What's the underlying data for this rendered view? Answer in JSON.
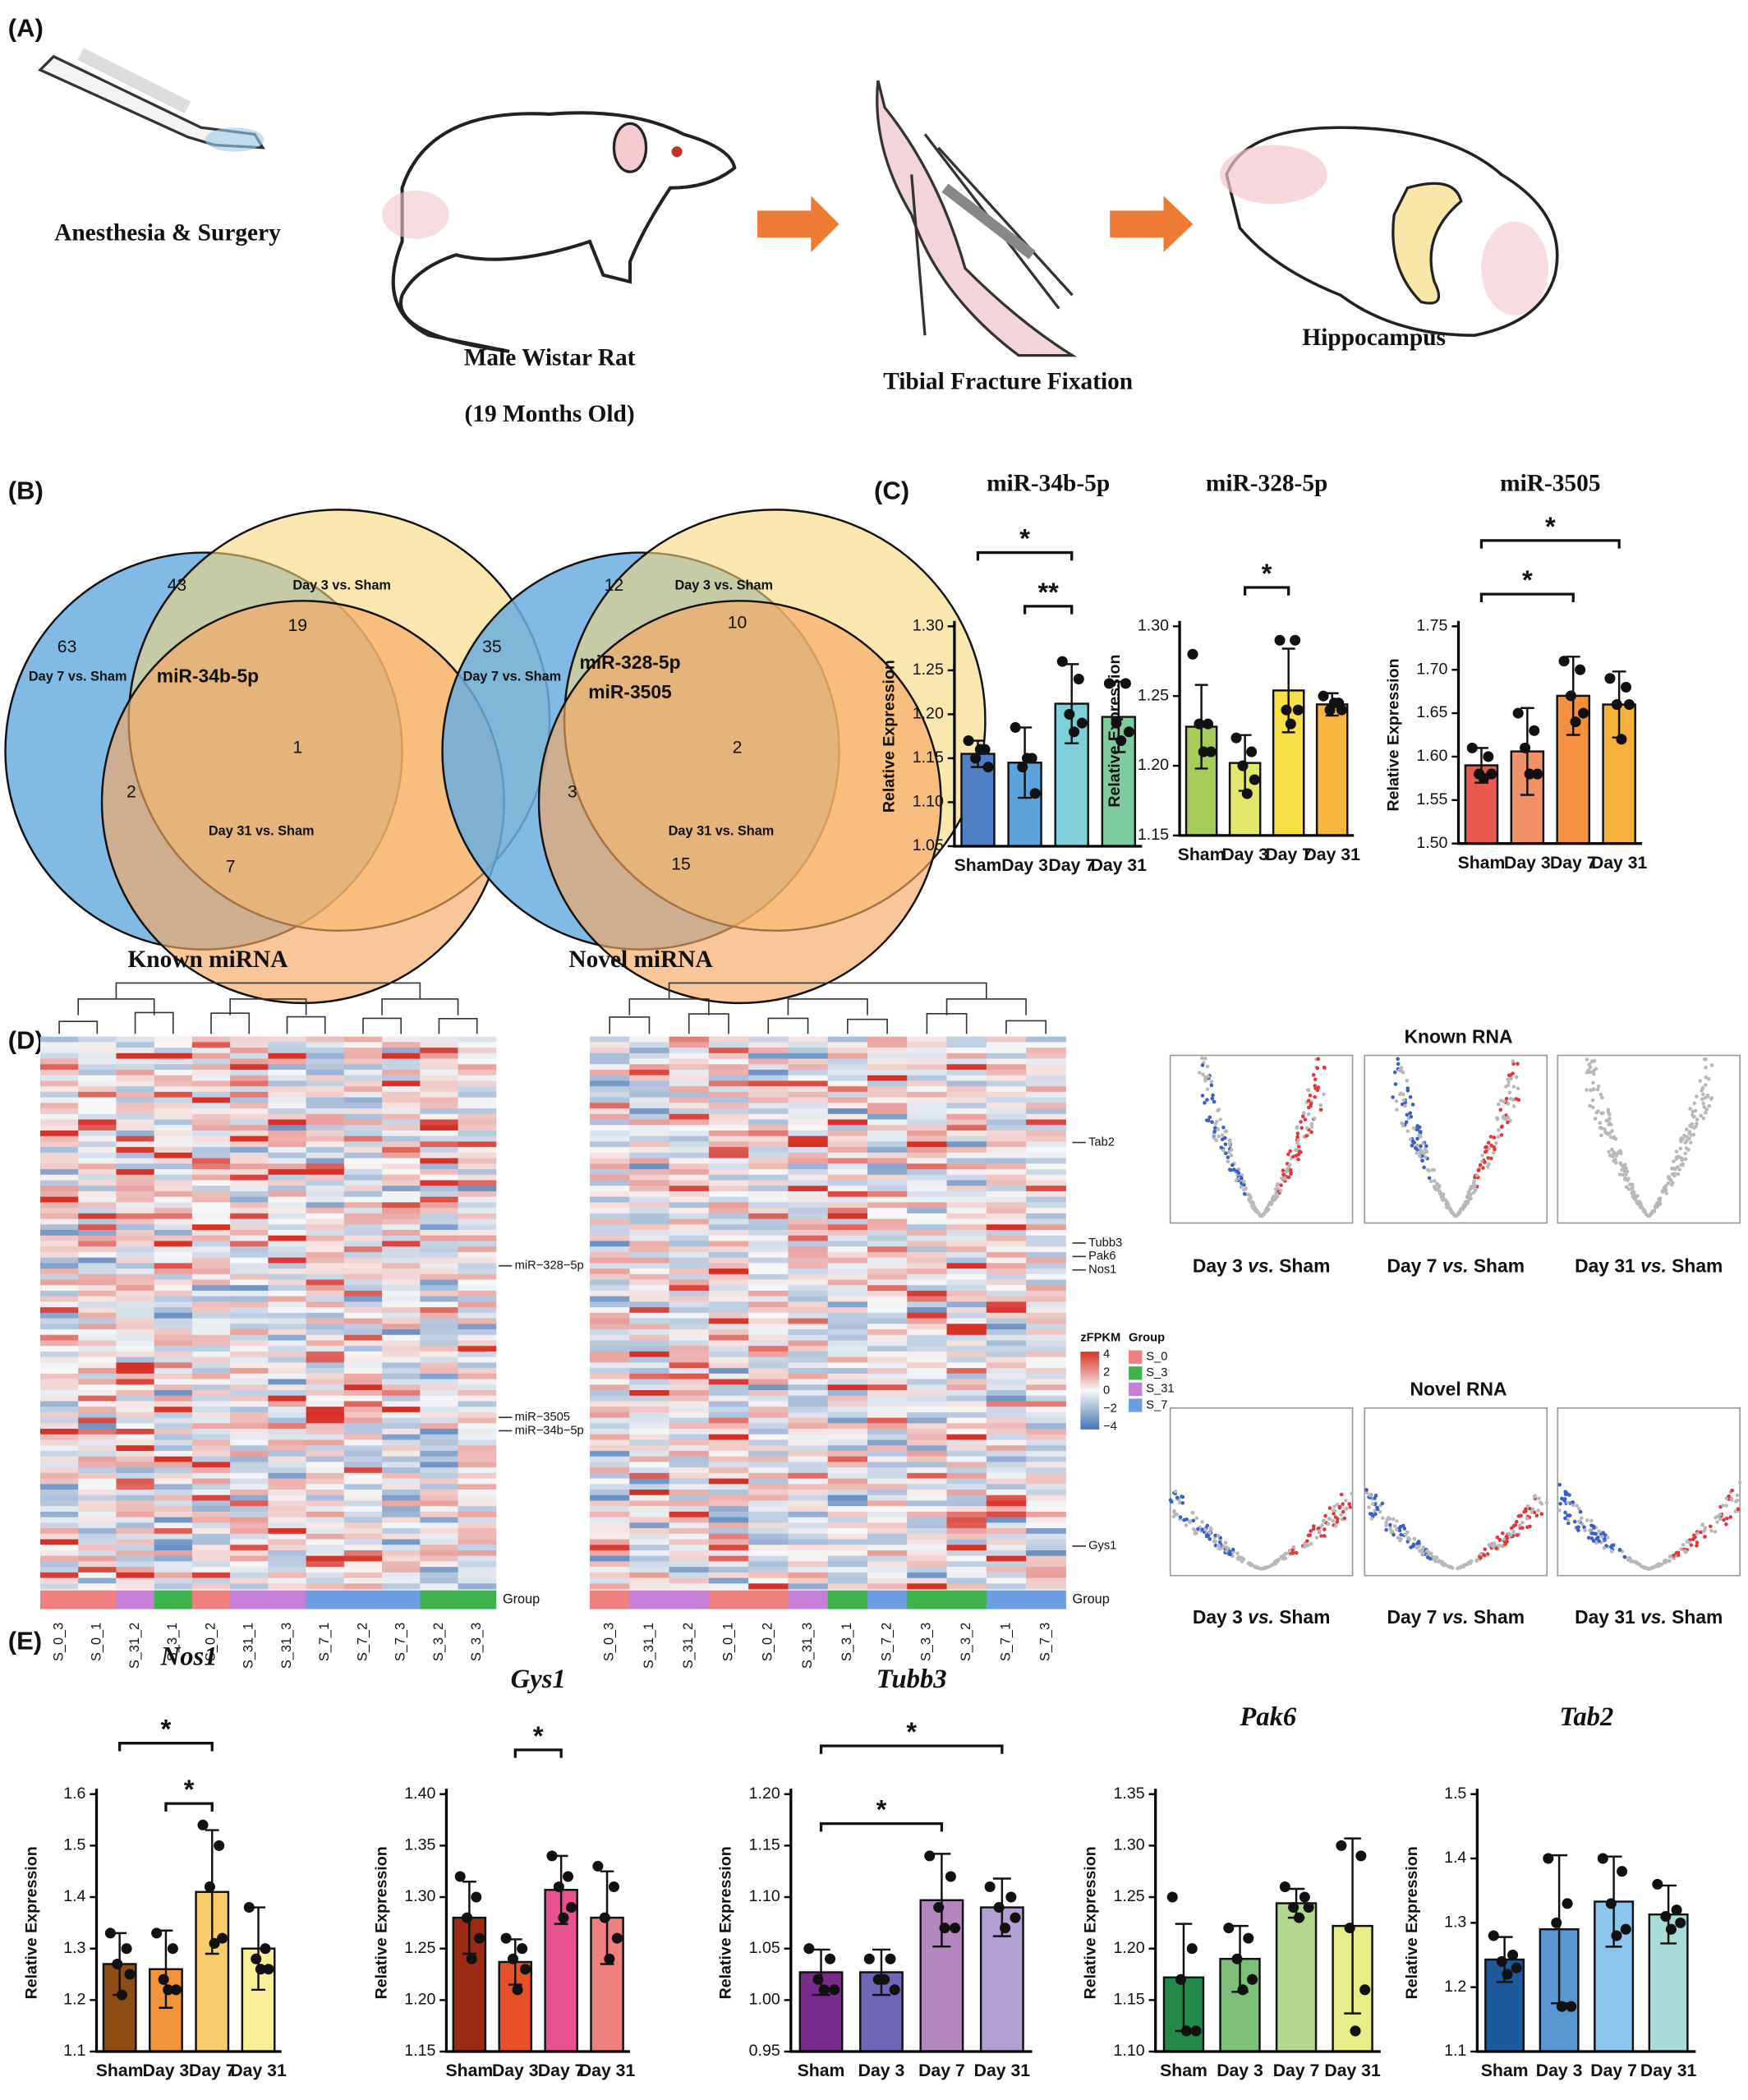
{
  "panel_labels": [
    "(A)",
    "(B)",
    "(C)",
    "(D)",
    "(E)"
  ],
  "panel_a": [
    "Anesthesia & Surgery",
    "Male Wistar Rat",
    "(19 Months Old)",
    "Tibial Fracture Fixation",
    "Hippocampus"
  ],
  "venn": [
    {
      "caption": "Known miRNA",
      "labels": [
        "63",
        "Day 7 vs. Sham",
        "43",
        "Day 3 vs. Sham",
        "19",
        "miR-34b-5p",
        "1",
        "2",
        "Day 31 vs. Sham",
        "7"
      ]
    },
    {
      "caption": "Novel miRNA",
      "labels": [
        "35",
        "Day 7 vs. Sham",
        "12",
        "Day 3 vs. Sham",
        "10",
        "miR-328-5p",
        "miR-3505",
        "2",
        "3",
        "Day 31 vs. Sham",
        "15"
      ]
    }
  ],
  "heatmaps": [
    {
      "samples": [
        "S_0_3",
        "S_0_1",
        "S_31_2",
        "S_3_1",
        "S_0_2",
        "S_31_1",
        "S_31_3",
        "S_7_1",
        "S_7_2",
        "S_7_3",
        "S_3_2",
        "S_3_3"
      ],
      "group_label": "Group",
      "genes": [
        "miR−328−5p",
        "miR−3505",
        "miR−34b−5p"
      ]
    },
    {
      "samples": [
        "S_0_3",
        "S_31_1",
        "S_31_2",
        "S_0_1",
        "S_0_2",
        "S_31_3",
        "S_3_1",
        "S_7_2",
        "S_3_3",
        "S_3_2",
        "S_7_1",
        "S_7_3"
      ],
      "group_label": "Group",
      "genes": [
        "Tab2",
        "Tubb3",
        "Pak6",
        "Nos1",
        "Gys1"
      ]
    }
  ],
  "heatmap_legend": {
    "title": "zFPKM",
    "ticks": [
      "4",
      "2",
      "0",
      "−2",
      "−4"
    ],
    "group_title": "Group",
    "groups": [
      {
        "name": "S_0",
        "color": "#f08080"
      },
      {
        "name": "S_3",
        "color": "#3cb44b"
      },
      {
        "name": "S_31",
        "color": "#c57fd6"
      },
      {
        "name": "S_7",
        "color": "#6a9ee0"
      }
    ]
  },
  "volcano": {
    "titles": [
      "Known RNA",
      "Novel RNA"
    ],
    "captions": [
      [
        "Day 3 ",
        "vs.",
        "",
        " Sham"
      ],
      [
        "Day 7 ",
        "vs.",
        "",
        " Sham"
      ],
      [
        "Day 31 ",
        "vs.",
        "",
        " Sham"
      ]
    ]
  },
  "chart_data": [
    {
      "type": "bar",
      "title": "miR-34b-5p",
      "ylabel": "Relative Expression",
      "categories": [
        "Sham",
        "Day 3",
        "Day 7",
        "Day 31"
      ],
      "values": [
        1.155,
        1.145,
        1.212,
        1.197
      ],
      "errors": [
        0.015,
        0.04,
        0.045,
        0.04
      ],
      "points": [
        [
          1.17,
          1.16,
          1.15,
          1.14,
          1.16
        ],
        [
          1.185,
          1.15,
          1.14,
          1.11,
          1.15
        ],
        [
          1.26,
          1.24,
          1.2,
          1.19,
          1.18
        ],
        [
          1.235,
          1.235,
          1.19,
          1.18,
          1.17
        ]
      ],
      "colors": [
        "#4f7fc4",
        "#5ba3dd",
        "#7ecfd8",
        "#7fcba0"
      ],
      "ylim": [
        1.05,
        1.3
      ],
      "yticks": [
        1.05,
        {
          "value": 1.1,
          "label": "1.10"
        },
        1.15,
        {
          "value": 1.2,
          "label": "1.20"
        },
        1.25,
        {
          "value": 1.3,
          "label": "1.30"
        }
      ],
      "significance": [
        {
          "from": "Sham",
          "to": "Day 7",
          "label": "*"
        },
        {
          "from": "Day 3",
          "to": "Day 7",
          "label": "**"
        }
      ]
    },
    {
      "type": "bar",
      "title": "miR-328-5p",
      "ylabel": "Relative Expression",
      "categories": [
        "Sham",
        "Day 3",
        "Day 7",
        "Day 31"
      ],
      "values": [
        1.228,
        1.202,
        1.254,
        1.244
      ],
      "errors": [
        0.03,
        0.02,
        0.03,
        0.008
      ],
      "points": [
        [
          1.28,
          1.23,
          1.23,
          1.21,
          1.21
        ],
        [
          1.22,
          1.21,
          1.2,
          1.19,
          1.18
        ],
        [
          1.29,
          1.29,
          1.24,
          1.24,
          1.23
        ],
        [
          1.25,
          1.245,
          1.24,
          1.24,
          1.245
        ]
      ],
      "colors": [
        "#a8cc5c",
        "#e4e86a",
        "#f6e046",
        "#f6b73c"
      ],
      "ylim": [
        1.15,
        1.3
      ],
      "yticks": [
        1.15,
        {
          "value": 1.2,
          "label": "1.20"
        },
        1.25,
        {
          "value": 1.3,
          "label": "1.30"
        }
      ],
      "significance": [
        {
          "from": "Day 3",
          "to": "Day 7",
          "label": "*"
        }
      ]
    },
    {
      "type": "bar",
      "title": "miR-3505",
      "ylabel": "Relative Expression",
      "categories": [
        "Sham",
        "Day 3",
        "Day 7",
        "Day 31"
      ],
      "values": [
        1.59,
        1.606,
        1.67,
        1.66
      ],
      "errors": [
        0.02,
        0.05,
        0.045,
        0.038
      ],
      "points": [
        [
          1.61,
          1.6,
          1.58,
          1.58,
          1.575
        ],
        [
          1.65,
          1.63,
          1.61,
          1.58,
          1.58
        ],
        [
          1.71,
          1.7,
          1.67,
          1.65,
          1.64
        ],
        [
          1.69,
          1.68,
          1.66,
          1.66,
          1.62
        ]
      ],
      "colors": [
        "#e85a50",
        "#f2906a",
        "#f6903e",
        "#f6b13a"
      ],
      "ylim": [
        1.5,
        1.75
      ],
      "yticks": [
        {
          "value": 1.5,
          "label": "1.50"
        },
        1.55,
        {
          "value": 1.6,
          "label": "1.60"
        },
        1.65,
        {
          "value": 1.7,
          "label": "1.70"
        },
        1.75
      ],
      "significance": [
        {
          "from": "Sham",
          "to": "Day 31",
          "label": "*"
        },
        {
          "from": "Sham",
          "to": "Day 7",
          "label": "*"
        }
      ]
    },
    {
      "type": "bar",
      "title": "Nos1",
      "ylabel": "Relative Expression",
      "categories": [
        "Sham",
        "Day 3",
        "Day 7",
        "Day 31"
      ],
      "values": [
        1.27,
        1.26,
        1.41,
        1.3
      ],
      "errors": [
        0.06,
        0.075,
        0.12,
        0.08
      ],
      "points": [
        [
          1.33,
          1.3,
          1.27,
          1.25,
          1.21
        ],
        [
          1.33,
          1.3,
          1.24,
          1.22,
          1.22
        ],
        [
          1.54,
          1.5,
          1.42,
          1.32,
          1.31
        ],
        [
          1.38,
          1.3,
          1.28,
          1.26,
          1.26
        ]
      ],
      "colors": [
        "#8f4d16",
        "#f3943a",
        "#f8cc6a",
        "#f8ef96"
      ],
      "ylim": [
        1.1,
        1.6
      ],
      "yticks": [
        1.1,
        1.2,
        1.3,
        1.4,
        1.5,
        1.6
      ],
      "significance": [
        {
          "from": "Sham",
          "to": "Day 7",
          "label": "*"
        },
        {
          "from": "Day 3",
          "to": "Day 7",
          "label": "*"
        }
      ]
    },
    {
      "type": "bar",
      "title": "Gys1",
      "ylabel": "Relative Expression",
      "categories": [
        "Sham",
        "Day 3",
        "Day 7",
        "Day 31"
      ],
      "values": [
        1.28,
        1.237,
        1.307,
        1.28
      ],
      "errors": [
        0.035,
        0.022,
        0.033,
        0.045
      ],
      "points": [
        [
          1.32,
          1.3,
          1.28,
          1.26,
          1.24
        ],
        [
          1.26,
          1.25,
          1.24,
          1.23,
          1.21
        ],
        [
          1.34,
          1.32,
          1.31,
          1.29,
          1.28
        ],
        [
          1.33,
          1.31,
          1.28,
          1.26,
          1.24
        ]
      ],
      "colors": [
        "#9b2a14",
        "#e8502a",
        "#e8528e",
        "#f08080"
      ],
      "ylim": [
        1.15,
        1.4
      ],
      "yticks": [
        1.15,
        {
          "value": 1.2,
          "label": "1.20"
        },
        1.25,
        {
          "value": 1.3,
          "label": "1.30"
        },
        1.35,
        {
          "value": 1.4,
          "label": "1.40"
        }
      ],
      "significance": [
        {
          "from": "Day 3",
          "to": "Day 7",
          "label": "*"
        }
      ]
    },
    {
      "type": "bar",
      "title": "Tubb3",
      "ylabel": "Relative Expression",
      "categories": [
        "Sham",
        "Day 3",
        "Day 7",
        "Day 31"
      ],
      "values": [
        1.027,
        1.027,
        1.097,
        1.09
      ],
      "errors": [
        0.022,
        0.022,
        0.045,
        0.028
      ],
      "points": [
        [
          1.05,
          1.04,
          1.02,
          1.01,
          1.01
        ],
        [
          1.04,
          1.04,
          1.02,
          1.01,
          1.02
        ],
        [
          1.14,
          1.12,
          1.09,
          1.07,
          1.07
        ],
        [
          1.11,
          1.1,
          1.09,
          1.08,
          1.07
        ]
      ],
      "colors": [
        "#7a2c8c",
        "#6e66b6",
        "#b486c0",
        "#b0a0d4"
      ],
      "ylim": [
        0.95,
        1.2
      ],
      "yticks": [
        0.95,
        {
          "value": 1.0,
          "label": "1.00"
        },
        1.05,
        {
          "value": 1.1,
          "label": "1.10"
        },
        1.15,
        {
          "value": 1.2,
          "label": "1.20"
        }
      ],
      "significance": [
        {
          "from": "Sham",
          "to": "Day 31",
          "label": "*"
        },
        {
          "from": "Sham",
          "to": "Day 7",
          "label": "*"
        }
      ]
    },
    {
      "type": "bar",
      "title": "Pak6",
      "ylabel": "Relative Expression",
      "categories": [
        "Sham",
        "Day 3",
        "Day 7",
        "Day 31"
      ],
      "values": [
        1.172,
        1.19,
        1.244,
        1.222
      ],
      "errors": [
        0.052,
        0.032,
        0.014,
        0.085
      ],
      "points": [
        [
          1.25,
          1.2,
          1.17,
          1.12,
          1.12
        ],
        [
          1.22,
          1.21,
          1.19,
          1.17,
          1.16
        ],
        [
          1.26,
          1.25,
          1.24,
          1.24,
          1.23
        ],
        [
          1.3,
          1.29,
          1.22,
          1.16,
          1.12
        ]
      ],
      "colors": [
        "#248a4c",
        "#7cc07a",
        "#b4d890",
        "#e6ee8a"
      ],
      "ylim": [
        1.1,
        1.35
      ],
      "yticks": [
        {
          "value": 1.1,
          "label": "1.10"
        },
        1.15,
        {
          "value": 1.2,
          "label": "1.20"
        },
        1.25,
        {
          "value": 1.3,
          "label": "1.30"
        },
        1.35
      ],
      "significance": []
    },
    {
      "type": "bar",
      "title": "Tab2",
      "ylabel": "Relative Expression",
      "categories": [
        "Sham",
        "Day 3",
        "Day 7",
        "Day 31"
      ],
      "values": [
        1.243,
        1.29,
        1.333,
        1.313
      ],
      "errors": [
        0.035,
        0.115,
        0.07,
        0.045
      ],
      "points": [
        [
          1.28,
          1.25,
          1.24,
          1.23,
          1.22
        ],
        [
          1.4,
          1.33,
          1.3,
          1.17,
          1.17
        ],
        [
          1.4,
          1.38,
          1.33,
          1.29,
          1.28
        ],
        [
          1.36,
          1.32,
          1.31,
          1.3,
          1.29
        ]
      ],
      "colors": [
        "#1c5a9c",
        "#5a96d0",
        "#8cc6ec",
        "#a8dcd8"
      ],
      "ylim": [
        1.1,
        1.5
      ],
      "yticks": [
        1.1,
        1.2,
        1.3,
        1.4,
        1.5
      ],
      "significance": []
    }
  ]
}
